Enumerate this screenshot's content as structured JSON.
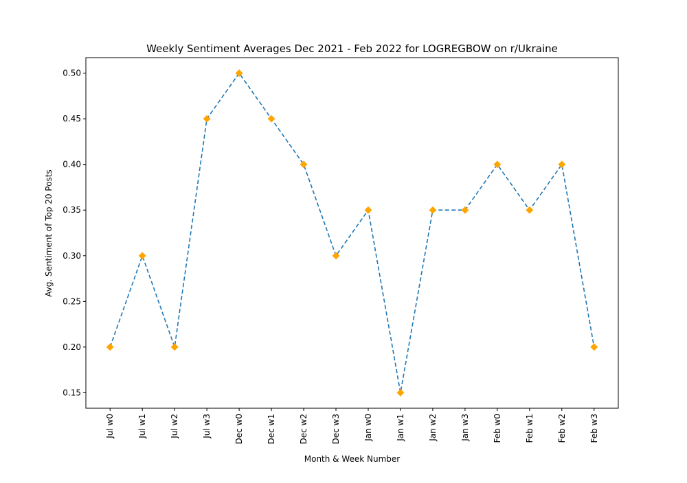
{
  "chart_data": {
    "type": "line",
    "title": "Weekly Sentiment Averages Dec 2021 - Feb 2022 for LOGREGBOW on r/Ukraine",
    "xlabel": "Month & Week Number",
    "ylabel": "Avg. Sentiment of Top 20 Posts",
    "categories": [
      "Jul w0",
      "Jul w1",
      "Jul w2",
      "Jul w3",
      "Dec w0",
      "Dec w1",
      "Dec w2",
      "Dec w3",
      "Jan w0",
      "Jan w1",
      "Jan w2",
      "Jan w3",
      "Feb w0",
      "Feb w1",
      "Feb w2",
      "Feb w3"
    ],
    "series": [
      {
        "values": [
          0.2,
          0.3,
          0.2,
          0.45,
          0.5,
          0.45,
          0.4,
          0.3,
          0.35,
          0.15,
          0.35,
          0.35,
          0.4,
          0.35,
          0.4,
          0.2
        ],
        "line_color": "#1f77b4",
        "line_style": "dashed",
        "marker": "diamond",
        "marker_color": "#ffa500"
      }
    ],
    "ylim": [
      0.133,
      0.517
    ],
    "yticks": [
      "0.15",
      "0.20",
      "0.25",
      "0.30",
      "0.35",
      "0.40",
      "0.45",
      "0.50"
    ],
    "grid": false,
    "legend": "none"
  }
}
